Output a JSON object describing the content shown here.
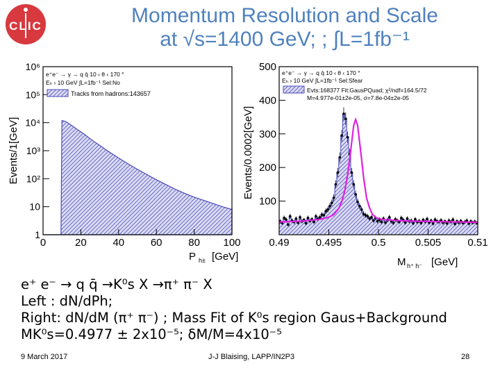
{
  "slide": {
    "title_line1": "Momentum Resolution and Scale",
    "title_line2": "at √s=1400 GeV; ; ∫L=1fb⁻¹",
    "body_lines": [
      "e⁺ e⁻ → q q̄ →K⁰s X →π⁺ π⁻ X",
      "Left : dN/dPh;",
      "Right: dN/dM (π⁺ π⁻) ; Mass Fit of K⁰s region  Gaus+Background",
      "MK⁰s=0.4977 ± 2x10⁻⁵; δM/M=4x10⁻⁵"
    ],
    "footer_date": "9 March 2017",
    "footer_author": "J-J Blaising, LAPP/IN2P3",
    "footer_page": "28"
  },
  "logo": {
    "text": "CLIC"
  },
  "colors": {
    "title": "#4f81bd",
    "logo_red": "#d7393e",
    "hist_fill": "#4a4ab8",
    "fit_line": "#e020e0"
  },
  "chart_data": [
    {
      "type": "area",
      "ylabel": "Events/1[GeV]",
      "xlabel": "P",
      "xlabel_sub": "h±",
      "xlabel_unit": "[GeV]",
      "ylog": true,
      "ylim": [
        1,
        1000000
      ],
      "xlim": [
        0,
        100
      ],
      "x_ticks": [
        "0",
        "20",
        "40",
        "60",
        "80",
        "100"
      ],
      "y_ticks": [
        "1",
        "10",
        "10²",
        "10³",
        "10⁴",
        "10⁵",
        "10⁶"
      ],
      "stats_lines": [
        "e⁺e⁻ → γ → q q̄ 10 ‹ θ ‹ 170 °",
        "Eₕ › 10 GeV  ∫L=1fb⁻¹ Sel:No"
      ],
      "legend": "Tracks from hadrons:143657",
      "series": [
        {
          "x": [
            0,
            2,
            4,
            6,
            8,
            9.5,
            10,
            12,
            14,
            16,
            18,
            20,
            22,
            24,
            26,
            28,
            30,
            32,
            34,
            36,
            38,
            40,
            45,
            50,
            55,
            60,
            65,
            70,
            75,
            80,
            85,
            90,
            95,
            100
          ],
          "y": [
            1,
            1,
            1,
            1,
            1,
            1,
            12000,
            11000,
            9000,
            7300,
            5800,
            4700,
            3800,
            3000,
            2400,
            1900,
            1550,
            1250,
            1000,
            820,
            670,
            550,
            340,
            215,
            140,
            92,
            62,
            42,
            30,
            22,
            17,
            13,
            10,
            8
          ]
        }
      ]
    },
    {
      "type": "bar",
      "ylabel": "Events/0.0002[GeV]",
      "xlabel": "M",
      "xlabel_sub": "h⁺ h⁻",
      "xlabel_unit": "[GeV]",
      "xlim": [
        0.49,
        0.51
      ],
      "ylim": [
        0,
        500
      ],
      "x_ticks": [
        "0.49",
        "0.495",
        "0.5",
        "0.505",
        "0.51"
      ],
      "y_ticks": [
        "100",
        "200",
        "300",
        "400",
        "500"
      ],
      "stats_lines": [
        "e⁺e⁻ → γ → q q̄ 10 ‹ θ ‹ 170 °",
        "Eₕ › 10 GeV  ∫L=1fb⁻¹ Sel:Sfear"
      ],
      "legend": "Evts:168377 Fit:GausPQuad; χ²/ndf=164.5/72",
      "fit_text": "M=4.977e-01±2e-05, σ=7.8e-04±2e-05",
      "series": [
        {
          "name": "Evts:168377",
          "x": [
            0.49,
            0.4902,
            0.4904,
            0.4906,
            0.4908,
            0.491,
            0.4912,
            0.4914,
            0.4916,
            0.4918,
            0.492,
            0.4922,
            0.4924,
            0.4926,
            0.4928,
            0.493,
            0.4932,
            0.4934,
            0.4936,
            0.4938,
            0.494,
            0.4942,
            0.4944,
            0.4946,
            0.4948,
            0.495,
            0.4952,
            0.4954,
            0.4956,
            0.4958,
            0.496,
            0.4962,
            0.4964,
            0.4966,
            0.4968,
            0.497,
            0.4972,
            0.4974,
            0.4976,
            0.4978,
            0.498,
            0.4982,
            0.4984,
            0.4986,
            0.4988,
            0.499,
            0.4992,
            0.4994,
            0.4996,
            0.4998,
            0.5,
            0.5002,
            0.5004,
            0.5006,
            0.5008,
            0.501,
            0.5012,
            0.5014,
            0.5016,
            0.5018,
            0.502,
            0.5022,
            0.5024,
            0.5026,
            0.5028,
            0.503,
            0.5032,
            0.5034,
            0.5036,
            0.5038,
            0.504,
            0.5042,
            0.5044,
            0.5046,
            0.5048,
            0.505,
            0.5052,
            0.5054,
            0.5056,
            0.5058,
            0.506,
            0.5062,
            0.5064,
            0.5066,
            0.5068,
            0.507,
            0.5072,
            0.5074,
            0.5076,
            0.5078,
            0.508,
            0.5082,
            0.5084,
            0.5086,
            0.5088,
            0.509,
            0.5092,
            0.5094,
            0.5096,
            0.5098
          ],
          "values": [
            40,
            35,
            50,
            45,
            30,
            55,
            42,
            38,
            48,
            36,
            52,
            40,
            44,
            34,
            50,
            41,
            46,
            38,
            55,
            47,
            52,
            60,
            58,
            70,
            75,
            85,
            95,
            110,
            150,
            185,
            230,
            295,
            360,
            345,
            290,
            240,
            185,
            150,
            120,
            98,
            85,
            75,
            62,
            58,
            55,
            48,
            52,
            42,
            50,
            40,
            45,
            38,
            48,
            36,
            44,
            52,
            40,
            35,
            46,
            42,
            38,
            50,
            44,
            36,
            48,
            40,
            42,
            34,
            46,
            38,
            41,
            35,
            44,
            39,
            47,
            36,
            42,
            33,
            45,
            40,
            38,
            43,
            36,
            40,
            34,
            42,
            38,
            45,
            32,
            40,
            36,
            41,
            35,
            38,
            42,
            33,
            40,
            36,
            39,
            35
          ]
        },
        {
          "name": "Fit:GausPQuad",
          "x": [
            0.49,
            0.492,
            0.494,
            0.495,
            0.4955,
            0.496,
            0.4963,
            0.4966,
            0.4969,
            0.4972,
            0.4975,
            0.4977,
            0.4979,
            0.4982,
            0.4985,
            0.4988,
            0.4991,
            0.4994,
            0.4998,
            0.5005,
            0.502,
            0.504,
            0.506,
            0.508,
            0.51
          ],
          "values": [
            38,
            40,
            45,
            52,
            60,
            78,
            98,
            130,
            180,
            250,
            325,
            343,
            325,
            250,
            170,
            110,
            80,
            60,
            50,
            45,
            42,
            40,
            39,
            38,
            37
          ]
        }
      ]
    }
  ]
}
